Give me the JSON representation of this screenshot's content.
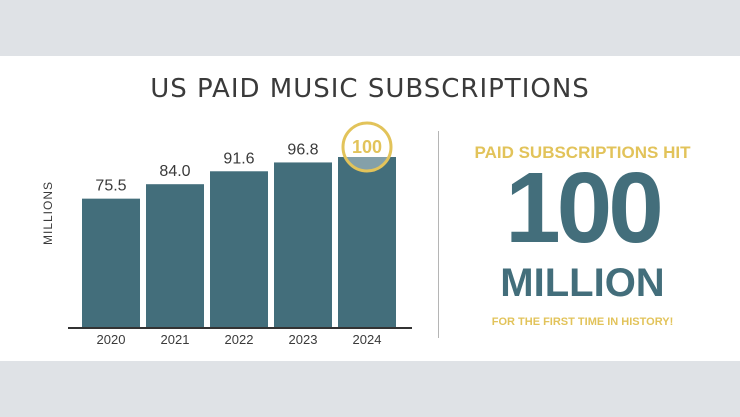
{
  "colors": {
    "bar": "#436e7b",
    "accent": "#e2c35a",
    "text": "#3a3a3a"
  },
  "panel": {
    "headline": "PAID SUBSCRIPTIONS HIT",
    "big_number": "100",
    "big_unit": "MILLION",
    "subline": "FOR THE FIRST TIME IN HISTORY!"
  },
  "chart_data": {
    "type": "bar",
    "title": "US PAID MUSIC SUBSCRIPTIONS",
    "ylabel": "MILLIONS",
    "xlabel": "",
    "categories": [
      "2020",
      "2021",
      "2022",
      "2023",
      "2024"
    ],
    "values": [
      75.5,
      84.0,
      91.6,
      96.8,
      100
    ],
    "data_labels": [
      "75.5",
      "84.0",
      "91.6",
      "96.8",
      "100"
    ],
    "highlight_index": 4,
    "ylim": [
      0,
      100
    ],
    "grid": false,
    "legend": "none"
  }
}
